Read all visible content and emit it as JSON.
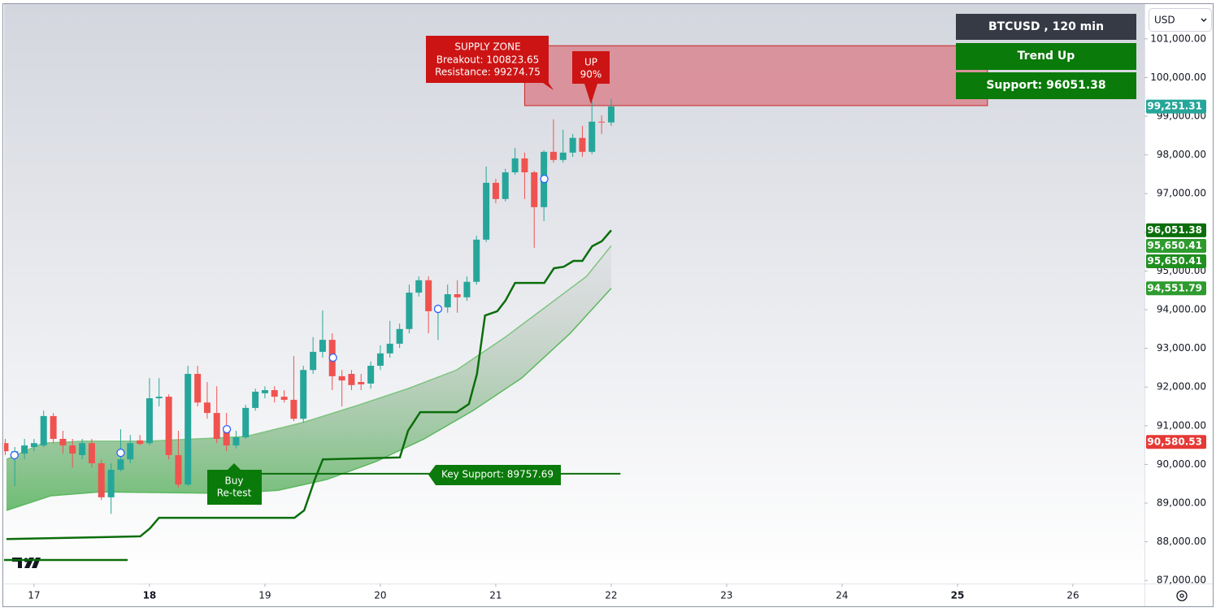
{
  "header": {
    "symbol": "BTCUSD , 120 min",
    "trend": "Trend Up",
    "support": "Support: 96051.38",
    "currency": "USD"
  },
  "chart_data": {
    "type": "candlestick",
    "x": [
      16.75,
      16.833,
      16.917,
      17,
      17.083,
      17.167,
      17.25,
      17.333,
      17.417,
      17.5,
      17.583,
      17.667,
      17.75,
      17.833,
      17.917,
      18,
      18.083,
      18.167,
      18.25,
      18.333,
      18.417,
      18.5,
      18.583,
      18.667,
      18.75,
      18.833,
      18.917,
      19,
      19.083,
      19.167,
      19.25,
      19.333,
      19.417,
      19.5,
      19.583,
      19.667,
      19.75,
      19.833,
      19.917,
      20,
      20.083,
      20.167,
      20.25,
      20.333,
      20.417,
      20.5,
      20.583,
      20.667,
      20.75,
      20.833,
      20.917,
      21,
      21.083,
      21.167,
      21.25,
      21.333,
      21.417,
      21.5,
      21.583,
      21.667,
      21.75,
      21.833,
      21.917,
      22
    ],
    "open": [
      90550,
      90200,
      90280,
      90450,
      90490,
      91250,
      90660,
      90490,
      90240,
      90550,
      90030,
      89150,
      89860,
      90130,
      90620,
      90550,
      91710,
      91750,
      90240,
      89480,
      92340,
      91600,
      91330,
      90970,
      90490,
      90700,
      91460,
      91840,
      91920,
      91750,
      91670,
      91180,
      92440,
      92910,
      93220,
      92280,
      92340,
      92130,
      92090,
      92550,
      92870,
      93120,
      93500,
      94440,
      94760,
      93960,
      94060,
      94400,
      94320,
      94720,
      95810,
      97280,
      96860,
      97550,
      97910,
      97550,
      96650,
      98080,
      97870,
      98060,
      98440,
      98080,
      98860,
      98840
    ],
    "high": [
      90660,
      90450,
      90660,
      90660,
      91390,
      91330,
      90870,
      90660,
      90660,
      90660,
      90130,
      90030,
      90910,
      90760,
      90760,
      92230,
      92230,
      91810,
      90870,
      92550,
      92550,
      92130,
      92020,
      91330,
      90870,
      91540,
      91960,
      92020,
      92020,
      91920,
      92800,
      92550,
      93290,
      93980,
      93390,
      92440,
      92440,
      92340,
      92660,
      93080,
      93710,
      93640,
      94650,
      94860,
      94860,
      94130,
      94650,
      94760,
      94860,
      95910,
      97700,
      97380,
      97640,
      98180,
      98060,
      97590,
      98120,
      98920,
      98650,
      98540,
      98750,
      99380,
      99020,
      99450
    ],
    "low": [
      90240,
      89440,
      90130,
      90340,
      90450,
      90550,
      90280,
      89920,
      90130,
      89920,
      89080,
      88720,
      89820,
      90030,
      90490,
      90490,
      91500,
      90130,
      89400,
      89440,
      91500,
      91180,
      90550,
      90340,
      90410,
      90660,
      91390,
      91710,
      91600,
      91600,
      91120,
      91080,
      92340,
      92760,
      91920,
      91500,
      91920,
      91920,
      91960,
      92440,
      92760,
      93010,
      93390,
      94340,
      93390,
      93220,
      93920,
      93920,
      94230,
      94650,
      95750,
      96750,
      96800,
      97490,
      96860,
      95600,
      96290,
      97800,
      97800,
      97950,
      97950,
      98020,
      98540,
      98750
    ],
    "close": [
      90340,
      90340,
      90490,
      90550,
      91250,
      90660,
      90490,
      90280,
      90550,
      90030,
      89150,
      89860,
      90130,
      90550,
      90530,
      91710,
      91750,
      90240,
      89480,
      92340,
      91600,
      91330,
      90660,
      90490,
      90700,
      91460,
      91880,
      91920,
      91750,
      91670,
      91180,
      92440,
      92910,
      93220,
      92280,
      92170,
      92050,
      92070,
      92550,
      92870,
      93120,
      93500,
      94440,
      94760,
      93960,
      94060,
      94400,
      94320,
      94720,
      95810,
      97280,
      96860,
      97550,
      97910,
      97550,
      96650,
      98080,
      97870,
      98060,
      98440,
      98080,
      98860,
      98840,
      99251.31
    ],
    "colors": {
      "up": "#26a69a",
      "down": "#ef5350"
    },
    "xlim": [
      16.74,
      26.62
    ],
    "xticks": [
      17,
      18,
      19,
      20,
      21,
      22,
      23,
      24,
      25,
      26
    ],
    "ylim": [
      86920,
      101900
    ],
    "yticks": [
      {
        "value": 87000,
        "label": "87,000.00"
      },
      {
        "value": 88000,
        "label": "88,000.00"
      },
      {
        "value": 89000,
        "label": "89,000.00"
      },
      {
        "value": 90000,
        "label": "90,000.00"
      },
      {
        "value": 91000,
        "label": "91,000.00"
      },
      {
        "value": 92000,
        "label": "92,000.00"
      },
      {
        "value": 93000,
        "label": "93,000.00"
      },
      {
        "value": 94000,
        "label": "94,000.00"
      },
      {
        "value": 95000,
        "label": "95,000.00"
      },
      {
        "value": 96000,
        "label": "96,000.00"
      },
      {
        "value": 97000,
        "label": "97,000.00"
      },
      {
        "value": 98000,
        "label": "98,000.00"
      },
      {
        "value": 99000,
        "label": "99,000.00"
      },
      {
        "value": 100000,
        "label": "100,000.00"
      },
      {
        "value": 101000,
        "label": "101,000.00"
      }
    ],
    "supertrend": {
      "color": "#0b6e0b",
      "x": [
        16.761,
        17.92,
        18.005,
        18.082,
        19.256,
        19.34,
        19.432,
        19.502,
        20.169,
        20.24,
        20.345,
        20.661,
        20.767,
        20.837,
        20.907,
        21.013,
        21.083,
        21.167,
        21.42,
        21.504,
        21.589,
        21.673,
        21.75,
        21.835,
        21.919,
        22
      ],
      "values": [
        88070,
        88140,
        88350,
        88620,
        88620,
        88810,
        89610,
        90130,
        90180,
        90870,
        91350,
        91350,
        91560,
        92340,
        93850,
        93960,
        94230,
        94690,
        94690,
        95070,
        95110,
        95260,
        95260,
        95640,
        95770,
        96051.38
      ]
    },
    "band_upper": {
      "color": "#7cc47f",
      "x": [
        16.761,
        17.077,
        17.429,
        17.991,
        18.834,
        19.326,
        19.818,
        20.24,
        20.661,
        21.083,
        21.504,
        21.786,
        22
      ],
      "values": [
        90130,
        90550,
        90600,
        90600,
        90720,
        91080,
        91540,
        91960,
        92440,
        93290,
        94230,
        94860,
        95650.41
      ]
    },
    "band_lower": {
      "color": "#5cb85f",
      "x": [
        16.761,
        17.148,
        17.569,
        18.131,
        18.694,
        19.115,
        19.537,
        19.959,
        20.38,
        20.802,
        21.223,
        21.645,
        22
      ],
      "values": [
        88810,
        89190,
        89290,
        89270,
        89250,
        89330,
        89610,
        90070,
        90660,
        91390,
        92230,
        93390,
        94551.79
      ]
    },
    "signals": {
      "color": "#2962ff",
      "x": [
        16.83,
        17.75,
        18.67,
        19.59,
        20.5,
        21.42
      ],
      "values": [
        90240,
        90300,
        90910,
        92760,
        94020,
        97380
      ]
    },
    "supply_zone": {
      "title": "SUPPLY ZONE",
      "breakout_label": "Breakout: 100823.65",
      "resistance_label": "Resistance: 99274.75",
      "top": 100823.65,
      "bottom": 99274.75,
      "x": [
        21.25,
        25.26
      ],
      "color": "#d9868f"
    },
    "key_support": {
      "label": "Key Support: 89757.69",
      "value": 89757.69,
      "x": [
        18.76,
        22.08
      ],
      "color": "#0b6e0b"
    },
    "up_signal": {
      "line1": "UP",
      "line2": "90%"
    },
    "buy_signal": {
      "line1": "Buy",
      "line2": "Re-test"
    },
    "price_labels": [
      {
        "value": 99251.31,
        "label": "99,251.31",
        "color": "#26a69a"
      },
      {
        "value": 96051.38,
        "label": "96,051.38",
        "color": "#0b6e0b"
      },
      {
        "value": 95650.41,
        "label": "95,650.41",
        "color": "#2e9b2e"
      },
      {
        "value": 95650.41,
        "label": "95,650.41",
        "color": "#1f8f1f"
      },
      {
        "value": 94551.79,
        "label": "94,551.79",
        "color": "#2e9b2e"
      },
      {
        "value": 90580.53,
        "label": "90,580.53",
        "color": "#e53935"
      }
    ]
  }
}
